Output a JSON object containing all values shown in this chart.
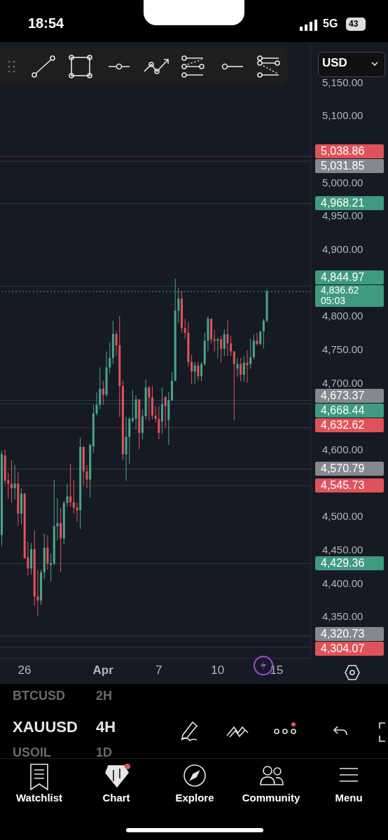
{
  "chart_data": {
    "type": "candlestick",
    "title": "XAUUSD",
    "subtitle": "4H",
    "categories": [
      null,
      null,
      null,
      null,
      null,
      null,
      null,
      "26",
      null,
      null,
      null,
      null,
      null,
      null,
      null,
      null,
      null,
      null,
      null,
      null,
      null,
      null,
      null,
      null,
      null,
      null,
      null,
      null,
      null,
      null,
      null,
      "Apr",
      null,
      null,
      null,
      null,
      null,
      null,
      null,
      null,
      null,
      null,
      null,
      null,
      null,
      null,
      null,
      null,
      "7",
      null,
      null,
      null,
      null,
      null,
      null,
      null,
      null,
      null,
      null,
      null,
      null,
      null,
      null,
      null,
      null,
      null,
      "10",
      null,
      null,
      null,
      null,
      null,
      null,
      null,
      null,
      null,
      null,
      null,
      null,
      null,
      null,
      null,
      null,
      null,
      "15",
      null,
      null,
      null,
      null,
      null,
      null,
      null,
      null,
      null,
      null
    ],
    "ohlc": [
      [
        4472,
        4598,
        4455,
        4593
      ],
      [
        4591,
        4600,
        4548,
        4553
      ],
      [
        4554,
        4565,
        4527,
        4549
      ],
      [
        4549,
        4584,
        4521,
        4542
      ],
      [
        4542,
        4577,
        4525,
        4549
      ],
      [
        4549,
        4567,
        4486,
        4504
      ],
      [
        4504,
        4542,
        4488,
        4534
      ],
      [
        4534,
        4535,
        4437,
        4437
      ],
      [
        4439,
        4462,
        4411,
        4422
      ],
      [
        4422,
        4460,
        4413,
        4451
      ],
      [
        4451,
        4479,
        4366,
        4380
      ],
      [
        4380,
        4420,
        4350,
        4374
      ],
      [
        4374,
        4420,
        4367,
        4416
      ],
      [
        4416,
        4474,
        4406,
        4453
      ],
      [
        4453,
        4472,
        4420,
        4429
      ],
      [
        4427,
        4444,
        4402,
        4430
      ],
      [
        4429,
        4555,
        4427,
        4485
      ],
      [
        4485,
        4527,
        4464,
        4490
      ],
      [
        4490,
        4513,
        4416,
        4467
      ],
      [
        4467,
        4523,
        4458,
        4520
      ],
      [
        4520,
        4549,
        4514,
        4530
      ],
      [
        4530,
        4579,
        4514,
        4521
      ],
      [
        4521,
        4555,
        4504,
        4513
      ],
      [
        4513,
        4521,
        4492,
        4509
      ],
      [
        4509,
        4618,
        4481,
        4604
      ],
      [
        4604,
        4605,
        4546,
        4567
      ],
      [
        4567,
        4577,
        4542,
        4555
      ],
      [
        4555,
        4609,
        4528,
        4607
      ],
      [
        4605,
        4667,
        4595,
        4654
      ],
      [
        4654,
        4686,
        4651,
        4667
      ],
      [
        4667,
        4723,
        4661,
        4691
      ],
      [
        4691,
        4703,
        4667,
        4682
      ],
      [
        4682,
        4747,
        4679,
        4723
      ],
      [
        4723,
        4761,
        4714,
        4737
      ],
      [
        4737,
        4793,
        4728,
        4773
      ],
      [
        4773,
        4777,
        4740,
        4756
      ],
      [
        4756,
        4800,
        4649,
        4695
      ],
      [
        4695,
        4703,
        4584,
        4593
      ],
      [
        4593,
        4649,
        4553,
        4619
      ],
      [
        4619,
        4649,
        4579,
        4646
      ],
      [
        4643,
        4689,
        4640,
        4647
      ],
      [
        4646,
        4681,
        4630,
        4675
      ],
      [
        4675,
        4675,
        4600,
        4625
      ],
      [
        4625,
        4660,
        4615,
        4650
      ],
      [
        4650,
        4705,
        4645,
        4693
      ],
      [
        4693,
        4695,
        4643,
        4678
      ],
      [
        4678,
        4695,
        4645,
        4651
      ],
      [
        4651,
        4665,
        4640,
        4646
      ],
      [
        4646,
        4665,
        4615,
        4625
      ],
      [
        4642,
        4693,
        4623,
        4668
      ],
      [
        4679,
        4679,
        4633,
        4665
      ],
      [
        4644,
        4686,
        4607,
        4674
      ],
      [
        4674,
        4716,
        4672,
        4703
      ],
      [
        4703,
        4856,
        4703,
        4808
      ],
      [
        4808,
        4842,
        4789,
        4826
      ],
      [
        4826,
        4838,
        4775,
        4782
      ],
      [
        4782,
        4796,
        4766,
        4775
      ],
      [
        4775,
        4791,
        4724,
        4731
      ],
      [
        4731,
        4742,
        4698,
        4717
      ],
      [
        4717,
        4731,
        4698,
        4726
      ],
      [
        4726,
        4731,
        4703,
        4710
      ],
      [
        4710,
        4731,
        4702,
        4728
      ],
      [
        4728,
        4775,
        4726,
        4763
      ],
      [
        4763,
        4800,
        4747,
        4796
      ],
      [
        4796,
        4796,
        4759,
        4765
      ],
      [
        4765,
        4779,
        4747,
        4763
      ],
      [
        4763,
        4768,
        4737,
        4765
      ],
      [
        4765,
        4770,
        4730,
        4751
      ],
      [
        4751,
        4780,
        4740,
        4773
      ],
      [
        4773,
        4794,
        4740,
        4759
      ],
      [
        4759,
        4770,
        4740,
        4747
      ],
      [
        4747,
        4747,
        4644,
        4728
      ],
      [
        4721,
        4737,
        4709,
        4728
      ],
      [
        4728,
        4737,
        4702,
        4712
      ],
      [
        4712,
        4740,
        4702,
        4730
      ],
      [
        4730,
        4749,
        4700,
        4726
      ],
      [
        4728,
        4766,
        4721,
        4738
      ],
      [
        4738,
        4773,
        4735,
        4763
      ],
      [
        4763,
        4775,
        4756,
        4758
      ],
      [
        4758,
        4777,
        4756,
        4777
      ],
      [
        4777,
        4796,
        4751,
        4793
      ],
      [
        4793,
        4840,
        4791,
        4836.62
      ],
      null,
      null,
      null,
      null,
      null,
      null,
      null,
      null,
      null,
      null,
      null,
      null,
      null
    ],
    "ylim": [
      4287,
      5205
    ],
    "yticks": [
      {
        "value": 4350,
        "label": "4,350.00"
      },
      {
        "value": 4400,
        "label": "4,400.00"
      },
      {
        "value": 4450,
        "label": "4,450.00"
      },
      {
        "value": 4500,
        "label": "4,500.00"
      },
      {
        "value": 4600,
        "label": "4,600.00"
      },
      {
        "value": 4700,
        "label": "4,700.00"
      },
      {
        "value": 4750,
        "label": "4,750.00"
      },
      {
        "value": 4800,
        "label": "4,800.00"
      },
      {
        "value": 4900,
        "label": "4,900.00"
      },
      {
        "value": 4950,
        "label": "4,950.00"
      },
      {
        "value": 5000,
        "label": "5,000.00"
      },
      {
        "value": 5100,
        "label": "5,100.00"
      },
      {
        "value": 5150,
        "label": "5,150.00"
      }
    ],
    "grid": false,
    "ref_lines": [
      {
        "axis": "y",
        "value": 5038.86,
        "label": "5,038.86",
        "color": "#e0525a"
      },
      {
        "axis": "y",
        "value": 5031.85,
        "label": "5,031.85",
        "color": "#86888f"
      },
      {
        "axis": "y",
        "value": 4968.21,
        "label": "4,968.21",
        "color": "#3e9a80"
      },
      {
        "axis": "y",
        "value": 4844.97,
        "label": "4,844.97",
        "color": "#3e9a80"
      },
      {
        "axis": "y",
        "value": 4836.62,
        "label": "4,836.62",
        "color": "#3e9a80",
        "line_style": "dotted"
      },
      {
        "axis": "y",
        "value": 4673.37,
        "label": "4,673.37",
        "color": "#86888f"
      },
      {
        "axis": "y",
        "value": 4668.44,
        "label": "4,668.44",
        "color": "#3e9a80"
      },
      {
        "axis": "y",
        "value": 4632.62,
        "label": "4,632.62",
        "color": "#e0525a"
      },
      {
        "axis": "y",
        "value": 4570.79,
        "label": "4,570.79",
        "color": "#86888f"
      },
      {
        "axis": "y",
        "value": 4545.73,
        "label": "4,545.73",
        "color": "#e0525a"
      },
      {
        "axis": "y",
        "value": 4429.36,
        "label": "4,429.36",
        "color": "#3e9a80"
      },
      {
        "axis": "y",
        "value": 4320.73,
        "label": "4,320.73",
        "color": "#86888f"
      },
      {
        "axis": "y",
        "value": 4304.07,
        "label": "4,304.07",
        "color": "#e0525a"
      }
    ],
    "annotations": [
      "18:54",
      "5G",
      "43",
      "USD",
      "BTCUSD",
      "2H",
      "USOIL",
      "1D",
      "Watchlist",
      "Chart",
      "Explore",
      "Community",
      "Menu",
      "05:03"
    ]
  }
}
